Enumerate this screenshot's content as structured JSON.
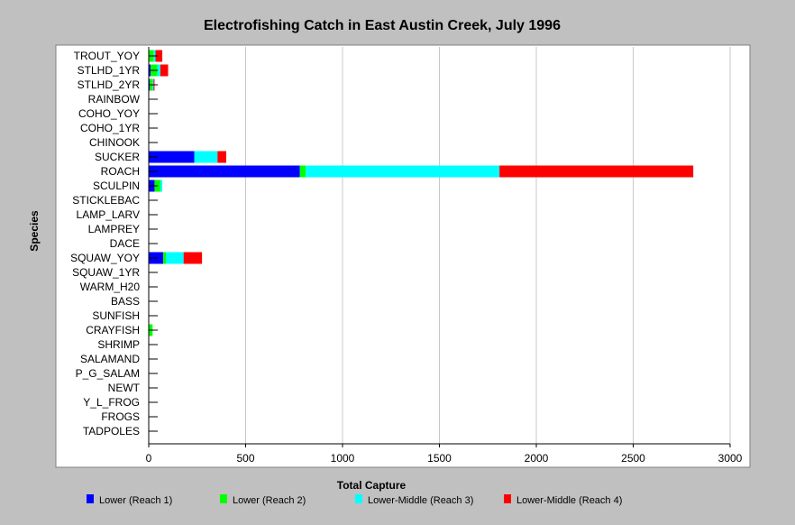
{
  "chart_data": {
    "type": "bar",
    "orientation": "horizontal",
    "stacked": true,
    "title": "Electrofishing Catch in East Austin Creek, July 1996",
    "xlabel": "Total Capture",
    "ylabel": "Species",
    "xlim": [
      0,
      3000
    ],
    "xticks": [
      0,
      500,
      1000,
      1500,
      2000,
      2500,
      3000
    ],
    "grid": "vertical",
    "legend_position": "bottom",
    "categories": [
      "TROUT_YOY",
      "STLHD_1YR",
      "STLHD_2YR",
      "RAINBOW",
      "COHO_YOY",
      "COHO_1YR",
      "CHINOOK",
      "SUCKER",
      "ROACH",
      "SCULPIN",
      "STICKLEBAC",
      "LAMP_LARV",
      "LAMPREY",
      "DACE",
      "SQUAW_YOY",
      "SQUAW_1YR",
      "WARM_H20",
      "BASS",
      "SUNFISH",
      "CRAYFISH",
      "SHRIMP",
      "SALAMAND",
      "P_G_SALAM",
      "NEWT",
      "Y_L_FROG",
      "FROGS",
      "TADPOLES"
    ],
    "series": [
      {
        "name": "Lower (Reach 1)",
        "color": "#0000ff",
        "values": [
          0,
          10,
          5,
          0,
          0,
          0,
          0,
          235,
          780,
          30,
          0,
          0,
          0,
          0,
          75,
          0,
          0,
          0,
          0,
          0,
          0,
          0,
          0,
          0,
          0,
          0,
          0
        ]
      },
      {
        "name": "Lower (Reach 2)",
        "color": "#00ff00",
        "values": [
          25,
          35,
          15,
          0,
          0,
          0,
          0,
          0,
          30,
          30,
          0,
          0,
          0,
          0,
          15,
          0,
          0,
          0,
          0,
          20,
          0,
          0,
          0,
          0,
          0,
          0,
          0
        ]
      },
      {
        "name": "Lower-Middle (Reach 3)",
        "color": "#00ffff",
        "values": [
          10,
          15,
          5,
          0,
          0,
          0,
          0,
          120,
          1000,
          10,
          0,
          0,
          0,
          0,
          90,
          0,
          0,
          0,
          0,
          0,
          0,
          0,
          0,
          0,
          0,
          0,
          0
        ]
      },
      {
        "name": "Lower-Middle (Reach 4)",
        "color": "#ff0000",
        "values": [
          35,
          40,
          5,
          0,
          0,
          0,
          0,
          45,
          1000,
          0,
          0,
          0,
          0,
          0,
          95,
          0,
          0,
          0,
          0,
          0,
          0,
          0,
          0,
          0,
          0,
          0,
          0
        ]
      }
    ]
  }
}
